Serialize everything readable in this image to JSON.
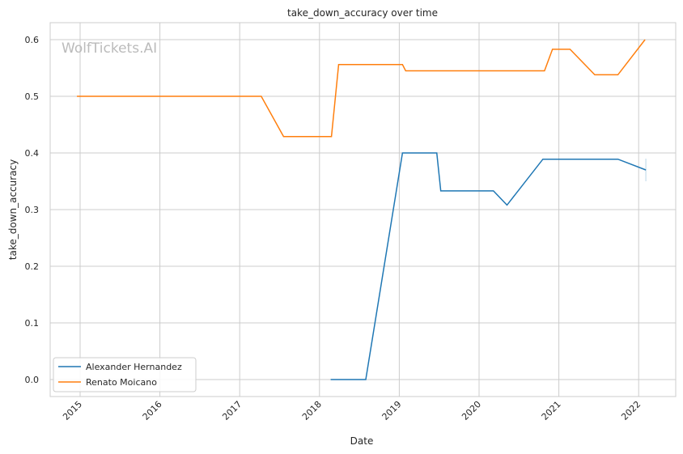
{
  "chart_data": {
    "type": "line",
    "title": "take_down_accuracy over time",
    "xlabel": "Date",
    "ylabel": "take_down_accuracy",
    "watermark": "WolfTickets.AI",
    "xlim": [
      2014.63,
      2022.45
    ],
    "ylim": [
      -0.03,
      0.63
    ],
    "xticks": [
      2015,
      2016,
      2017,
      2018,
      2019,
      2020,
      2021,
      2022
    ],
    "xtick_labels": [
      "2015",
      "2016",
      "2017",
      "2018",
      "2019",
      "2020",
      "2021",
      "2022"
    ],
    "yticks": [
      0.0,
      0.1,
      0.2,
      0.3,
      0.4,
      0.5,
      0.6
    ],
    "ytick_labels": [
      "0.0",
      "0.1",
      "0.2",
      "0.3",
      "0.4",
      "0.5",
      "0.6"
    ],
    "grid": true,
    "legend": "bottom-left",
    "series": [
      {
        "name": "Alexander Hernandez",
        "color": "#1f77b4",
        "x": [
          2018.14,
          2018.58,
          2019.04,
          2019.47,
          2019.52,
          2020.18,
          2020.35,
          2020.8,
          2021.74,
          2022.09
        ],
        "y": [
          0.0,
          0.0,
          0.4,
          0.4,
          0.333,
          0.333,
          0.308,
          0.389,
          0.389,
          0.37
        ]
      },
      {
        "name": "Renato Moicano",
        "color": "#ff7f0e",
        "x": [
          2014.96,
          2017.27,
          2017.55,
          2018.15,
          2018.24,
          2019.04,
          2019.08,
          2020.82,
          2020.92,
          2021.14,
          2021.45,
          2021.74,
          2022.08
        ],
        "y": [
          0.5,
          0.5,
          0.429,
          0.429,
          0.556,
          0.556,
          0.545,
          0.545,
          0.583,
          0.583,
          0.538,
          0.538,
          0.6
        ]
      }
    ]
  }
}
